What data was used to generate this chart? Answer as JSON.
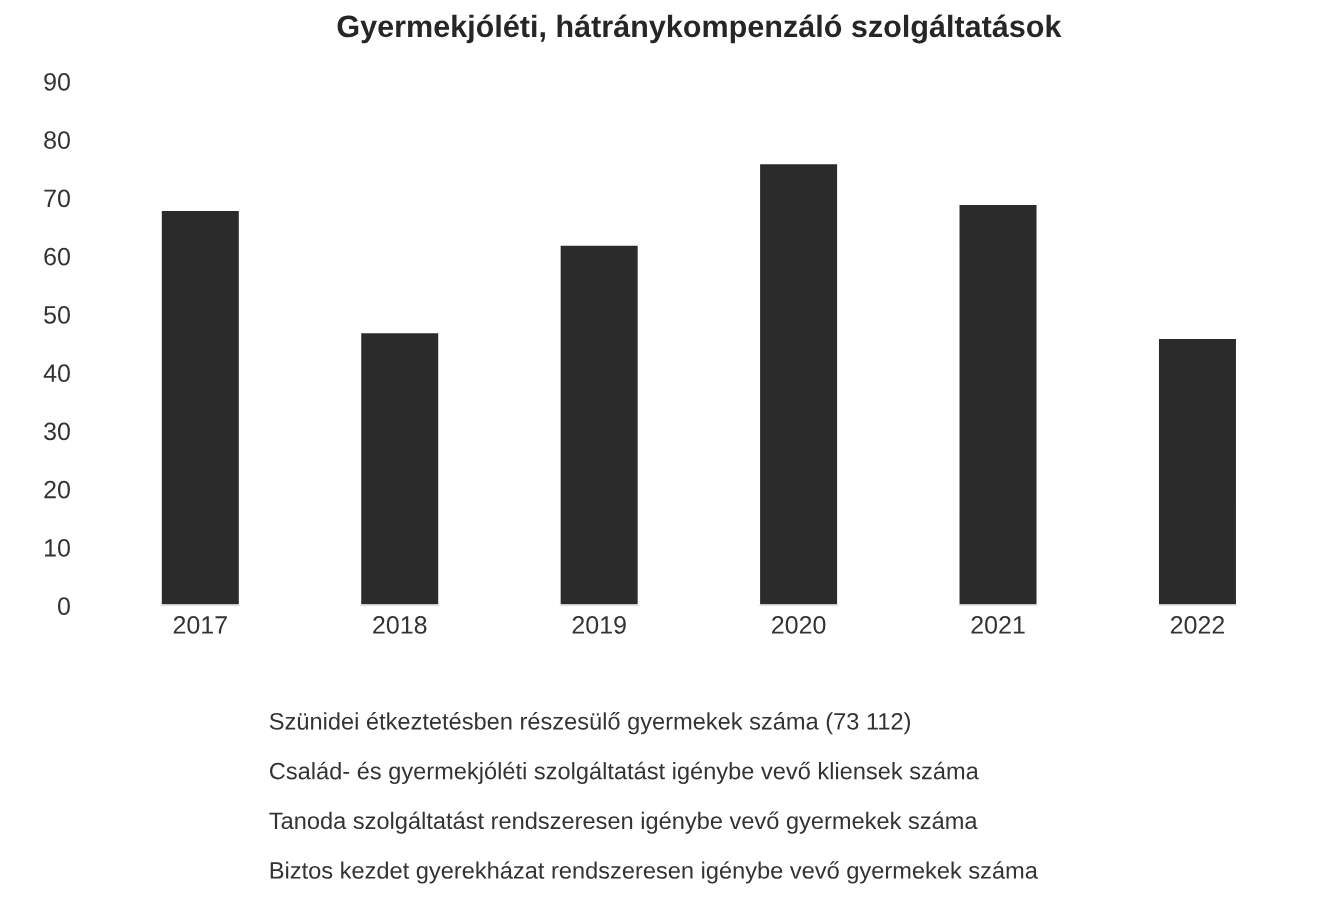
{
  "chart_data": {
    "type": "bar",
    "title": "Gyermekjóléti, hátránykompenzáló szolgáltatások",
    "categories": [
      "2017",
      "2018",
      "2019",
      "2020",
      "2021",
      "2022"
    ],
    "values": [
      68,
      47,
      62,
      76,
      69,
      46
    ],
    "color": "#2b2b2b",
    "ylim": [
      0,
      90
    ],
    "yticks": [
      0,
      10,
      20,
      30,
      40,
      50,
      60,
      70,
      80,
      90
    ],
    "grid": false,
    "annotations": [
      "Szünidei étkeztetésben részesülő gyermekek száma (73 112)",
      "Család- és gyermekjóléti szolgáltatást igénybe vevő kliensek száma",
      "Tanoda szolgáltatást rendszeresen igénybe vevő gyermekek száma",
      "Biztos kezdet gyerekházat rendszeresen igénybe vevő gyermekek száma"
    ]
  }
}
